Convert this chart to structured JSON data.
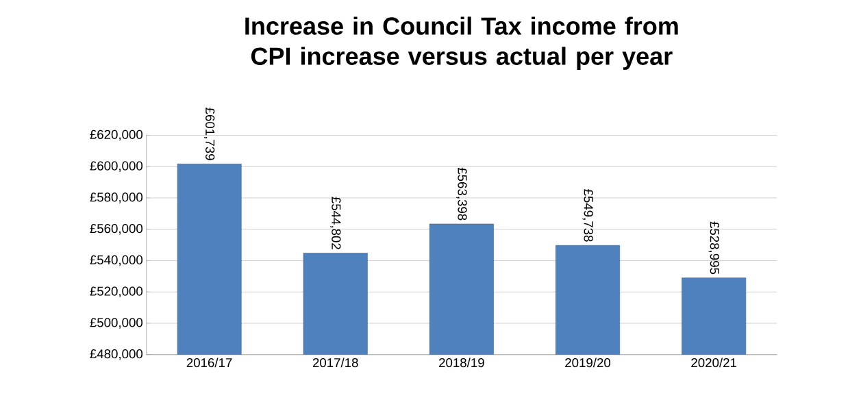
{
  "chart_data": {
    "type": "bar",
    "title": "Increase in Council Tax income from CPI increase versus actual per year",
    "categories": [
      "2016/17",
      "2017/18",
      "2018/19",
      "2019/20",
      "2020/21"
    ],
    "values": [
      601739,
      544802,
      563398,
      549738,
      528995
    ],
    "value_labels": [
      "£601,739",
      "£544,802",
      "£563,398",
      "£549,738",
      "£528,995"
    ],
    "color": "#4f81bd",
    "ylim": [
      480000,
      620000
    ],
    "yticks": [
      {
        "value": 480000,
        "label": "£480,000"
      },
      {
        "value": 500000,
        "label": "£500,000"
      },
      {
        "value": 520000,
        "label": "£520,000"
      },
      {
        "value": 540000,
        "label": "£540,000"
      },
      {
        "value": 560000,
        "label": "£560,000"
      },
      {
        "value": 580000,
        "label": "£580,000"
      },
      {
        "value": 600000,
        "label": "£600,000"
      },
      {
        "value": 620000,
        "label": "£620,000"
      }
    ],
    "grid": "y"
  }
}
